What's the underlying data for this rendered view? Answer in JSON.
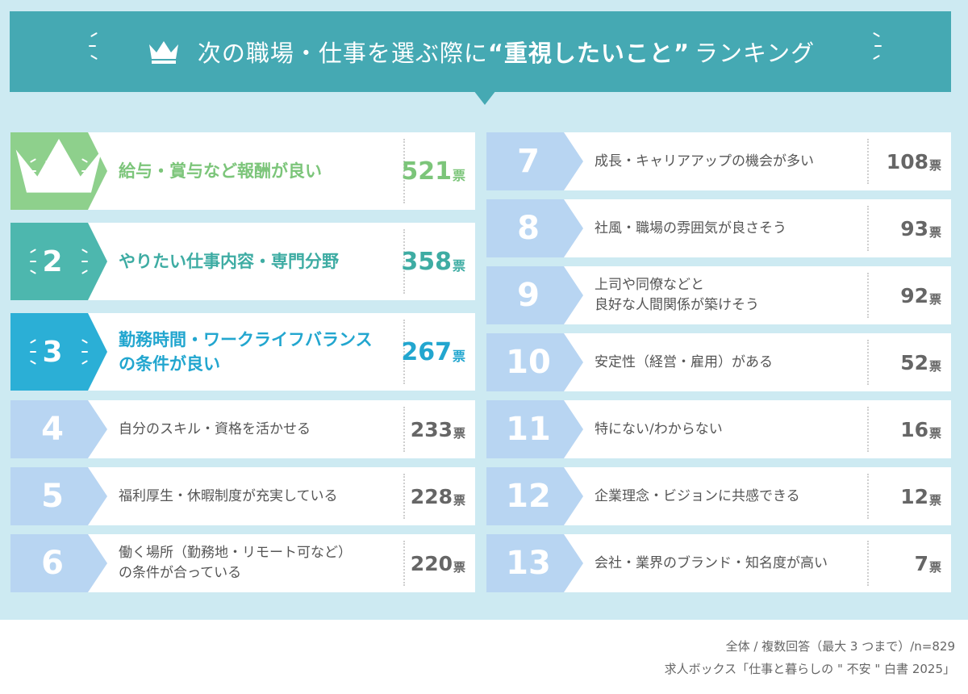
{
  "header": {
    "title_pre": "次の職場・仕事を選ぶ際に",
    "title_open_quote": "“",
    "title_emph": "重視したいこと",
    "title_close_quote": "”",
    "title_post": "ランキング",
    "banner_color": "#45a9b3",
    "icon": "crown-icon"
  },
  "chart_data": {
    "type": "table",
    "title": "次の職場・仕事を選ぶ際に“重視したいこと”ランキング",
    "unit": "票",
    "rows": [
      {
        "rank": "1",
        "label": "給与・賞与など報酬が良い",
        "votes": 521,
        "votes_text": "521",
        "color": "#8ed08c"
      },
      {
        "rank": "2",
        "label": "やりたい仕事内容・専門分野",
        "votes": 358,
        "votes_text": "358",
        "color": "#4db7ae"
      },
      {
        "rank": "3",
        "label": "勤務時間・ワークライフバランス\nの条件が良い",
        "votes": 267,
        "votes_text": "267",
        "color": "#2bafd6"
      },
      {
        "rank": "4",
        "label": "自分のスキル・資格を活かせる",
        "votes": 233,
        "votes_text": "233",
        "color": "#b8d5f2"
      },
      {
        "rank": "5",
        "label": "福利厚生・休暇制度が充実している",
        "votes": 228,
        "votes_text": "228",
        "color": "#b8d5f2"
      },
      {
        "rank": "6",
        "label": "働く場所（勤務地・リモート可など）\nの条件が合っている",
        "votes": 220,
        "votes_text": "220",
        "color": "#b8d5f2"
      },
      {
        "rank": "7",
        "label": "成長・キャリアアップの機会が多い",
        "votes": 108,
        "votes_text": "108",
        "color": "#b8d5f2"
      },
      {
        "rank": "8",
        "label": "社風・職場の雰囲気が良さそう",
        "votes": 93,
        "votes_text": "93",
        "color": "#b8d5f2"
      },
      {
        "rank": "9",
        "label": "上司や同僚などと\n良好な人間関係が築けそう",
        "votes": 92,
        "votes_text": "92",
        "color": "#b8d5f2"
      },
      {
        "rank": "10",
        "label": "安定性（経営・雇用）がある",
        "votes": 52,
        "votes_text": "52",
        "color": "#b8d5f2"
      },
      {
        "rank": "11",
        "label": "特にない/わからない",
        "votes": 16,
        "votes_text": "16",
        "color": "#b8d5f2"
      },
      {
        "rank": "12",
        "label": "企業理念・ビジョンに共感できる",
        "votes": 12,
        "votes_text": "12",
        "color": "#b8d5f2"
      },
      {
        "rank": "13",
        "label": "会社・業界のブランド・知名度が高い",
        "votes": 7,
        "votes_text": "7",
        "color": "#b8d5f2"
      }
    ]
  },
  "footer": {
    "note": "全体 / 複数回答（最大 3 つまで）/n=829",
    "source": "求人ボックス「仕事と暮らしの \" 不安 \" 白書 2025」"
  }
}
